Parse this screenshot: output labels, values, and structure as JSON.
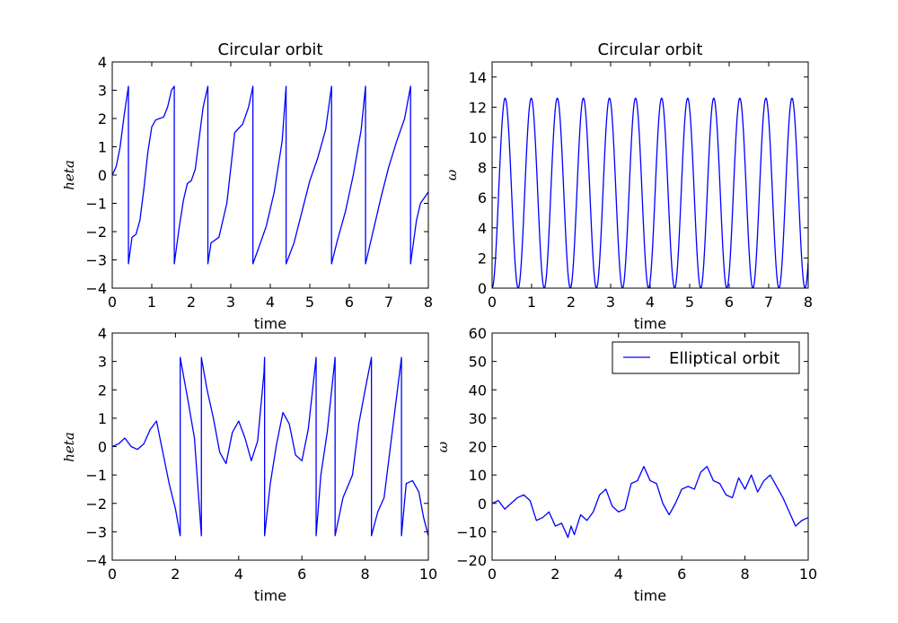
{
  "colors": {
    "line": "#0000ff",
    "axes": "#000000",
    "background": "#ffffff"
  },
  "chart_data": [
    {
      "id": "ax1",
      "type": "line",
      "title": "Circular orbit",
      "xlabel": "time",
      "ylabel": "heta",
      "xlim": [
        0,
        8
      ],
      "ylim": [
        -4,
        4
      ],
      "xticks": [
        "0",
        "1",
        "2",
        "3",
        "4",
        "5",
        "6",
        "7",
        "8"
      ],
      "yticks": [
        "−4",
        "−3",
        "−2",
        "−1",
        "0",
        "1",
        "2",
        "3",
        "4"
      ],
      "legend": null,
      "series": [
        {
          "x": [
            0,
            0.1,
            0.2,
            0.3,
            0.41,
            0.41,
            0.5,
            0.6,
            0.7,
            0.8,
            0.9,
            1.0,
            1.1,
            1.2,
            1.3,
            1.4,
            1.5,
            1.57,
            1.57,
            1.7,
            1.8,
            1.9,
            2.0,
            2.1,
            2.2,
            2.3,
            2.42,
            2.42,
            2.5,
            2.7,
            2.9,
            3.1,
            3.3,
            3.45,
            3.56,
            3.56,
            3.7,
            3.9,
            4.1,
            4.3,
            4.4,
            4.4,
            4.6,
            4.8,
            5.0,
            5.2,
            5.4,
            5.55,
            5.55,
            5.7,
            5.9,
            6.1,
            6.3,
            6.41,
            6.41,
            6.6,
            6.8,
            7.0,
            7.2,
            7.4,
            7.55,
            7.55,
            7.7,
            7.8,
            7.9,
            8.0
          ],
          "y": [
            0,
            0.3,
            1.0,
            2.1,
            3.14,
            -3.14,
            -2.2,
            -2.1,
            -1.6,
            -0.5,
            0.8,
            1.7,
            1.95,
            2.0,
            2.05,
            2.4,
            3.0,
            3.14,
            -3.14,
            -1.8,
            -0.9,
            -0.3,
            -0.2,
            0.2,
            1.3,
            2.4,
            3.14,
            -3.14,
            -2.4,
            -2.2,
            -1.0,
            1.5,
            1.8,
            2.4,
            3.14,
            -3.14,
            -2.6,
            -1.8,
            -0.6,
            1.2,
            3.14,
            -3.14,
            -2.4,
            -1.3,
            -0.2,
            0.6,
            1.6,
            3.14,
            -3.14,
            -2.3,
            -1.3,
            0.0,
            1.6,
            3.14,
            -3.14,
            -2.0,
            -0.8,
            0.3,
            1.2,
            2.0,
            3.14,
            -3.14,
            -1.6,
            -1.0,
            -0.8,
            -0.6
          ]
        }
      ]
    },
    {
      "id": "ax2",
      "type": "line",
      "title": "Circular orbit",
      "xlabel": "time",
      "ylabel": "ω",
      "xlim": [
        0,
        8
      ],
      "ylim": [
        0,
        15
      ],
      "xticks": [
        "0",
        "1",
        "2",
        "3",
        "4",
        "5",
        "6",
        "7",
        "8"
      ],
      "yticks": [
        "0",
        "2",
        "4",
        "6",
        "8",
        "10",
        "12",
        "14"
      ],
      "legend": null,
      "series": [
        {
          "function": "peak*sin^2(pi*t/period)",
          "peak": 12.6,
          "period": 0.66,
          "x_range": [
            0,
            8
          ]
        }
      ]
    },
    {
      "id": "ax3",
      "type": "line",
      "title": "",
      "xlabel": "time",
      "ylabel": "heta",
      "xlim": [
        0,
        10
      ],
      "ylim": [
        -4,
        4
      ],
      "xticks": [
        "0",
        "2",
        "4",
        "6",
        "8",
        "10"
      ],
      "yticks": [
        "−4",
        "−3",
        "−2",
        "−1",
        "0",
        "1",
        "2",
        "3",
        "4"
      ],
      "legend": null,
      "series": [
        {
          "x": [
            0,
            0.2,
            0.4,
            0.6,
            0.8,
            1.0,
            1.2,
            1.4,
            1.6,
            1.8,
            2.0,
            2.15,
            2.15,
            2.4,
            2.6,
            2.82,
            2.82,
            3.0,
            3.2,
            3.4,
            3.6,
            3.8,
            4.0,
            4.2,
            4.4,
            4.6,
            4.8,
            4.82,
            4.82,
            5.0,
            5.2,
            5.4,
            5.6,
            5.8,
            6.0,
            6.2,
            6.45,
            6.45,
            6.6,
            6.8,
            7.05,
            7.05,
            7.3,
            7.6,
            7.8,
            8.0,
            8.2,
            8.2,
            8.4,
            8.6,
            8.8,
            9.15,
            9.15,
            9.3,
            9.5,
            9.7,
            9.85,
            10.0
          ],
          "y": [
            0,
            0.1,
            0.3,
            0.0,
            -0.1,
            0.1,
            0.6,
            0.9,
            -0.2,
            -1.3,
            -2.2,
            -3.14,
            3.14,
            1.6,
            0.3,
            -3.14,
            3.14,
            2.0,
            1.0,
            -0.2,
            -0.6,
            0.5,
            0.9,
            0.3,
            -0.5,
            0.2,
            2.6,
            3.14,
            -3.14,
            -1.3,
            0.1,
            1.2,
            0.8,
            -0.3,
            -0.5,
            0.6,
            3.14,
            -3.14,
            -1.0,
            0.5,
            3.14,
            -3.14,
            -1.8,
            -1.0,
            0.8,
            2.0,
            3.14,
            -3.14,
            -2.3,
            -1.8,
            0.0,
            3.14,
            -3.14,
            -1.3,
            -1.2,
            -1.6,
            -2.5,
            -3.14
          ]
        }
      ]
    },
    {
      "id": "ax4",
      "type": "line",
      "title": "",
      "xlabel": "time",
      "ylabel": "ω",
      "xlim": [
        0,
        10
      ],
      "ylim": [
        -20,
        60
      ],
      "xticks": [
        "0",
        "2",
        "4",
        "6",
        "8",
        "10"
      ],
      "yticks": [
        "−20",
        "−10",
        "0",
        "10",
        "20",
        "30",
        "40",
        "50",
        "60"
      ],
      "legend": {
        "position": "upper right",
        "entries": [
          "Elliptical orbit"
        ]
      },
      "series": [
        {
          "name": "Elliptical orbit",
          "x": [
            0,
            0.2,
            0.4,
            0.6,
            0.8,
            1.0,
            1.2,
            1.4,
            1.6,
            1.8,
            2.0,
            2.2,
            2.4,
            2.5,
            2.6,
            2.8,
            3.0,
            3.2,
            3.4,
            3.6,
            3.8,
            4.0,
            4.2,
            4.4,
            4.6,
            4.8,
            5.0,
            5.2,
            5.4,
            5.6,
            5.8,
            6.0,
            6.2,
            6.4,
            6.6,
            6.8,
            7.0,
            7.2,
            7.4,
            7.6,
            7.8,
            8.0,
            8.2,
            8.4,
            8.6,
            8.8,
            9.0,
            9.2,
            9.4,
            9.6,
            9.8,
            10.0
          ],
          "y": [
            0,
            1,
            -2,
            0,
            2,
            3,
            1,
            -6,
            -5,
            -3,
            -8,
            -7,
            -12,
            -8,
            -11,
            -4,
            -6,
            -3,
            3,
            5,
            -1,
            -3,
            -2,
            7,
            8,
            13,
            8,
            7,
            0,
            -4,
            0,
            5,
            6,
            5,
            11,
            13,
            8,
            7,
            3,
            2,
            9,
            5,
            10,
            4,
            8,
            10,
            6,
            2,
            -3,
            -8,
            -6,
            -5
          ]
        }
      ]
    }
  ]
}
